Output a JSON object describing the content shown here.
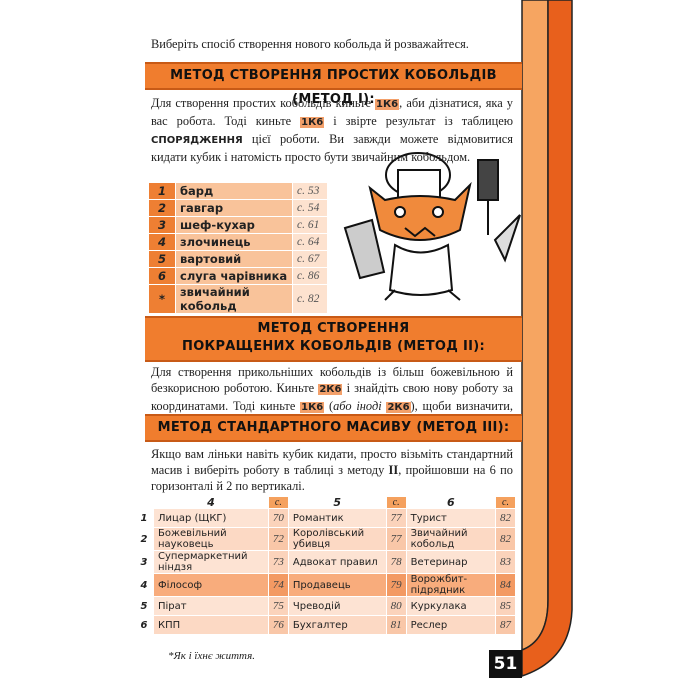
{
  "intro": "Виберіть спосіб створення нового кобольда й розважайтеся.",
  "method1": {
    "title": "МЕТОД СТВОРЕННЯ ПРОСТИХ КОБОЛЬДІВ (МЕТОД І):",
    "body": [
      "Для створення простих кобольдів киньте ",
      "1К6",
      ", аби дізнатися, яка у вас робота. Тоді киньте ",
      "1К6",
      " і звірте результат із таблицею ",
      "СПОРЯДЖЕННЯ",
      " цієї роботи. Ви завжди можете відмовитися кидати кубик і натомість просто бути звичайним кобольдом."
    ],
    "table": [
      [
        "1",
        "бард",
        "с. 53"
      ],
      [
        "2",
        "гавгар",
        "с. 54"
      ],
      [
        "3",
        "шеф-кухар",
        "с. 61"
      ],
      [
        "4",
        "злочинець",
        "с. 64"
      ],
      [
        "5",
        "вартовий",
        "с. 67"
      ],
      [
        "6",
        "слуга чарівника",
        "с. 86"
      ],
      [
        "*",
        "звичайний кобольд",
        "с. 82"
      ]
    ]
  },
  "method2": {
    "title": [
      "МЕТОД СТВОРЕННЯ",
      "ПОКРАЩЕНИХ КОБОЛЬДІВ (МЕТОД ІІ):"
    ],
    "body": [
      "Для створення прикольніших кобольдів із більш божевільною й безкорисною роботою. Киньте ",
      "2К6",
      " і знайдіть свою нову роботу за координатами. Тоді киньте ",
      "1К6",
      " (",
      "або іноді ",
      "2К6",
      "), щоби визначити, що у вас у лапі."
    ]
  },
  "method3": {
    "title": "МЕТОД СТАНДАРТНОГО МАСИВУ (МЕТОД ІІІ):",
    "body": [
      "Якщо вам лінь­ки навіть кубик кидати, просто візьміть стандартний масив і виберіть роботу в таблиці з методу ",
      "ІІ",
      ", пройшовши на 6 по горизонталі й 2 по вертикалі."
    ],
    "header": [
      "4",
      "с.",
      "5",
      "с.",
      "6",
      "с."
    ],
    "rows": [
      [
        "1",
        "Лицар (ЩКГ)",
        "70",
        "Романтик",
        "77",
        "Турист",
        "82"
      ],
      [
        "2",
        "Божевільний науковець",
        "72",
        "Королівський убивця",
        "77",
        "Звичайний кобольд",
        "82"
      ],
      [
        "3",
        "Супермаркетний ніндзя",
        "73",
        "Адвокат правил",
        "78",
        "Ветеринар",
        "83"
      ],
      [
        "4",
        "Філософ",
        "74",
        "Продавець",
        "79",
        "Ворожбит-підрядник",
        "84"
      ],
      [
        "5",
        "Пірат",
        "75",
        "Чреводій",
        "80",
        "Куркулака",
        "85"
      ],
      [
        "6",
        "КПП",
        "76",
        "Бухгалтер",
        "81",
        "Реслер",
        "87"
      ]
    ]
  },
  "footnote": "*Як і їхнє життя.",
  "page_number": "51"
}
